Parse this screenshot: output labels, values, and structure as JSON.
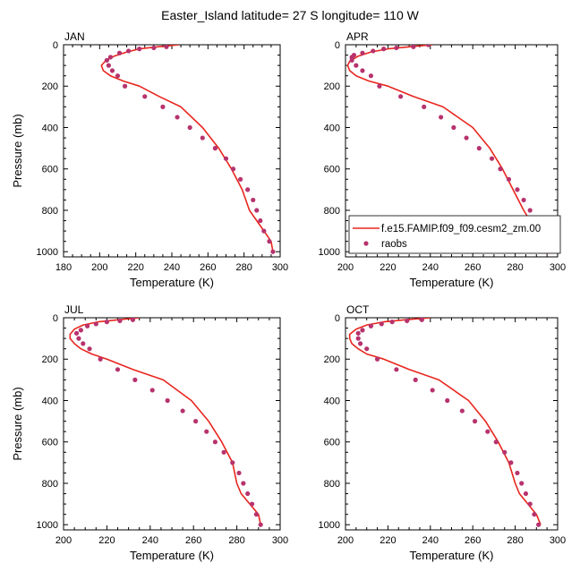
{
  "figure": {
    "title": "Easter_Island  latitude= 27 S longitude= 110 W"
  },
  "legend": {
    "model_label": "f.e15.FAMIP.f09_f09.cesm2_zm.00",
    "obs_label": "raobs",
    "placement": "lower-right of APR panel"
  },
  "colors": {
    "model_line": "#e8261e",
    "obs_marker": "#b7336d",
    "axis": "#000000",
    "background": "#ffffff"
  },
  "chart_data": [
    {
      "type": "line",
      "panel_label": "JAN",
      "xlabel": "Temperature (K)",
      "ylabel": "Pressure (mb)",
      "xlim": [
        180,
        300
      ],
      "ylim": [
        1025,
        0
      ],
      "x_ticks": [
        180,
        200,
        220,
        240,
        260,
        280,
        300
      ],
      "y_ticks": [
        0,
        200,
        400,
        600,
        800,
        1000
      ],
      "show_legend": false,
      "series": [
        {
          "name": "f.e15.FAMIP.f09_f09.cesm2_zm.00",
          "kind": "line",
          "x": [
            244,
            232,
            222,
            215,
            208,
            203,
            201,
            202,
            206,
            213,
            222,
            233,
            245,
            257,
            266,
            273,
            279,
            283,
            287,
            291,
            295,
            296
          ],
          "y": [
            0,
            10,
            20,
            35,
            55,
            80,
            100,
            125,
            150,
            175,
            200,
            250,
            300,
            400,
            500,
            600,
            700,
            800,
            850,
            900,
            950,
            1000
          ]
        },
        {
          "name": "raobs",
          "kind": "points",
          "x": [
            237,
            230,
            222,
            216,
            211,
            206,
            204,
            205,
            207,
            210,
            214,
            225,
            235,
            243,
            250,
            257,
            264,
            270,
            274,
            278,
            282,
            285,
            287,
            289,
            291,
            294,
            296
          ],
          "y": [
            10,
            15,
            20,
            30,
            40,
            60,
            75,
            100,
            125,
            150,
            200,
            250,
            300,
            350,
            400,
            450,
            500,
            550,
            600,
            650,
            700,
            750,
            800,
            850,
            900,
            950,
            1000
          ]
        }
      ]
    },
    {
      "type": "line",
      "panel_label": "APR",
      "xlabel": "Temperature (K)",
      "ylabel": "",
      "xlim": [
        200,
        300
      ],
      "ylim": [
        1025,
        0
      ],
      "x_ticks": [
        200,
        220,
        240,
        260,
        280,
        300
      ],
      "y_ticks": [
        0,
        200,
        400,
        600,
        800,
        1000
      ],
      "show_legend": true,
      "series": [
        {
          "name": "f.e15.FAMIP.f09_f09.cesm2_zm.00",
          "kind": "line",
          "x": [
            241,
            230,
            220,
            212,
            206,
            202,
            201,
            202,
            205,
            211,
            220,
            232,
            246,
            260,
            268,
            274,
            279,
            284,
            287,
            290,
            293,
            294
          ],
          "y": [
            0,
            10,
            20,
            35,
            55,
            80,
            100,
            125,
            150,
            175,
            200,
            250,
            300,
            400,
            500,
            600,
            700,
            800,
            850,
            900,
            950,
            1000
          ]
        },
        {
          "name": "raobs",
          "kind": "points",
          "x": [
            239,
            232,
            224,
            218,
            213,
            208,
            204,
            203,
            203,
            205,
            208,
            212,
            216,
            226,
            237,
            245,
            251,
            257,
            263,
            269,
            273,
            277,
            281,
            284,
            287,
            290,
            292,
            295
          ],
          "y": [
            0,
            10,
            15,
            20,
            30,
            40,
            50,
            60,
            75,
            100,
            125,
            150,
            200,
            250,
            300,
            350,
            400,
            450,
            500,
            550,
            600,
            650,
            700,
            750,
            800,
            850,
            900,
            1000
          ]
        }
      ]
    },
    {
      "type": "line",
      "panel_label": "JUL",
      "xlabel": "Temperature (K)",
      "ylabel": "Pressure (mb)",
      "xlim": [
        200,
        300
      ],
      "ylim": [
        1025,
        0
      ],
      "x_ticks": [
        200,
        220,
        240,
        260,
        280,
        300
      ],
      "y_ticks": [
        0,
        200,
        400,
        600,
        800,
        1000
      ],
      "show_legend": false,
      "series": [
        {
          "name": "f.e15.FAMIP.f09_f09.cesm2_zm.00",
          "kind": "line",
          "x": [
            235,
            225,
            216,
            209,
            205,
            203,
            203,
            205,
            208,
            213,
            220,
            232,
            246,
            259,
            267,
            273,
            278,
            280,
            282,
            286,
            290,
            291
          ],
          "y": [
            0,
            10,
            20,
            35,
            55,
            80,
            100,
            125,
            150,
            175,
            200,
            250,
            300,
            400,
            500,
            600,
            700,
            800,
            850,
            900,
            950,
            1000
          ]
        },
        {
          "name": "raobs",
          "kind": "points",
          "x": [
            232,
            226,
            220,
            215,
            211,
            208,
            206,
            207,
            209,
            212,
            217,
            225,
            233,
            241,
            248,
            255,
            261,
            266,
            270,
            274,
            278,
            281,
            283,
            285,
            287,
            289,
            291
          ],
          "y": [
            10,
            15,
            20,
            30,
            40,
            60,
            75,
            100,
            125,
            150,
            200,
            250,
            300,
            350,
            400,
            450,
            500,
            550,
            600,
            650,
            700,
            750,
            800,
            850,
            900,
            950,
            1000
          ]
        }
      ]
    },
    {
      "type": "line",
      "panel_label": "OCT",
      "xlabel": "Temperature (K)",
      "ylabel": "",
      "xlim": [
        200,
        300
      ],
      "ylim": [
        1025,
        0
      ],
      "x_ticks": [
        200,
        220,
        240,
        260,
        280,
        300
      ],
      "y_ticks": [
        0,
        200,
        400,
        600,
        800,
        1000
      ],
      "show_legend": false,
      "series": [
        {
          "name": "f.e15.FAMIP.f09_f09.cesm2_zm.00",
          "kind": "line",
          "x": [
            240,
            228,
            218,
            210,
            205,
            202,
            202,
            203,
            206,
            210,
            218,
            230,
            244,
            258,
            266,
            272,
            277,
            280,
            282,
            286,
            290,
            292
          ],
          "y": [
            0,
            10,
            20,
            35,
            55,
            80,
            100,
            125,
            150,
            175,
            200,
            250,
            300,
            400,
            500,
            600,
            700,
            800,
            850,
            900,
            950,
            1000
          ]
        },
        {
          "name": "raobs",
          "kind": "points",
          "x": [
            236,
            229,
            222,
            217,
            212,
            208,
            206,
            206,
            207,
            210,
            215,
            224,
            233,
            241,
            248,
            255,
            261,
            267,
            271,
            275,
            278,
            281,
            283,
            285,
            287,
            289,
            291
          ],
          "y": [
            10,
            15,
            20,
            30,
            40,
            60,
            75,
            100,
            125,
            150,
            200,
            250,
            300,
            350,
            400,
            450,
            500,
            550,
            600,
            650,
            700,
            750,
            800,
            850,
            900,
            950,
            1000
          ]
        }
      ]
    }
  ]
}
